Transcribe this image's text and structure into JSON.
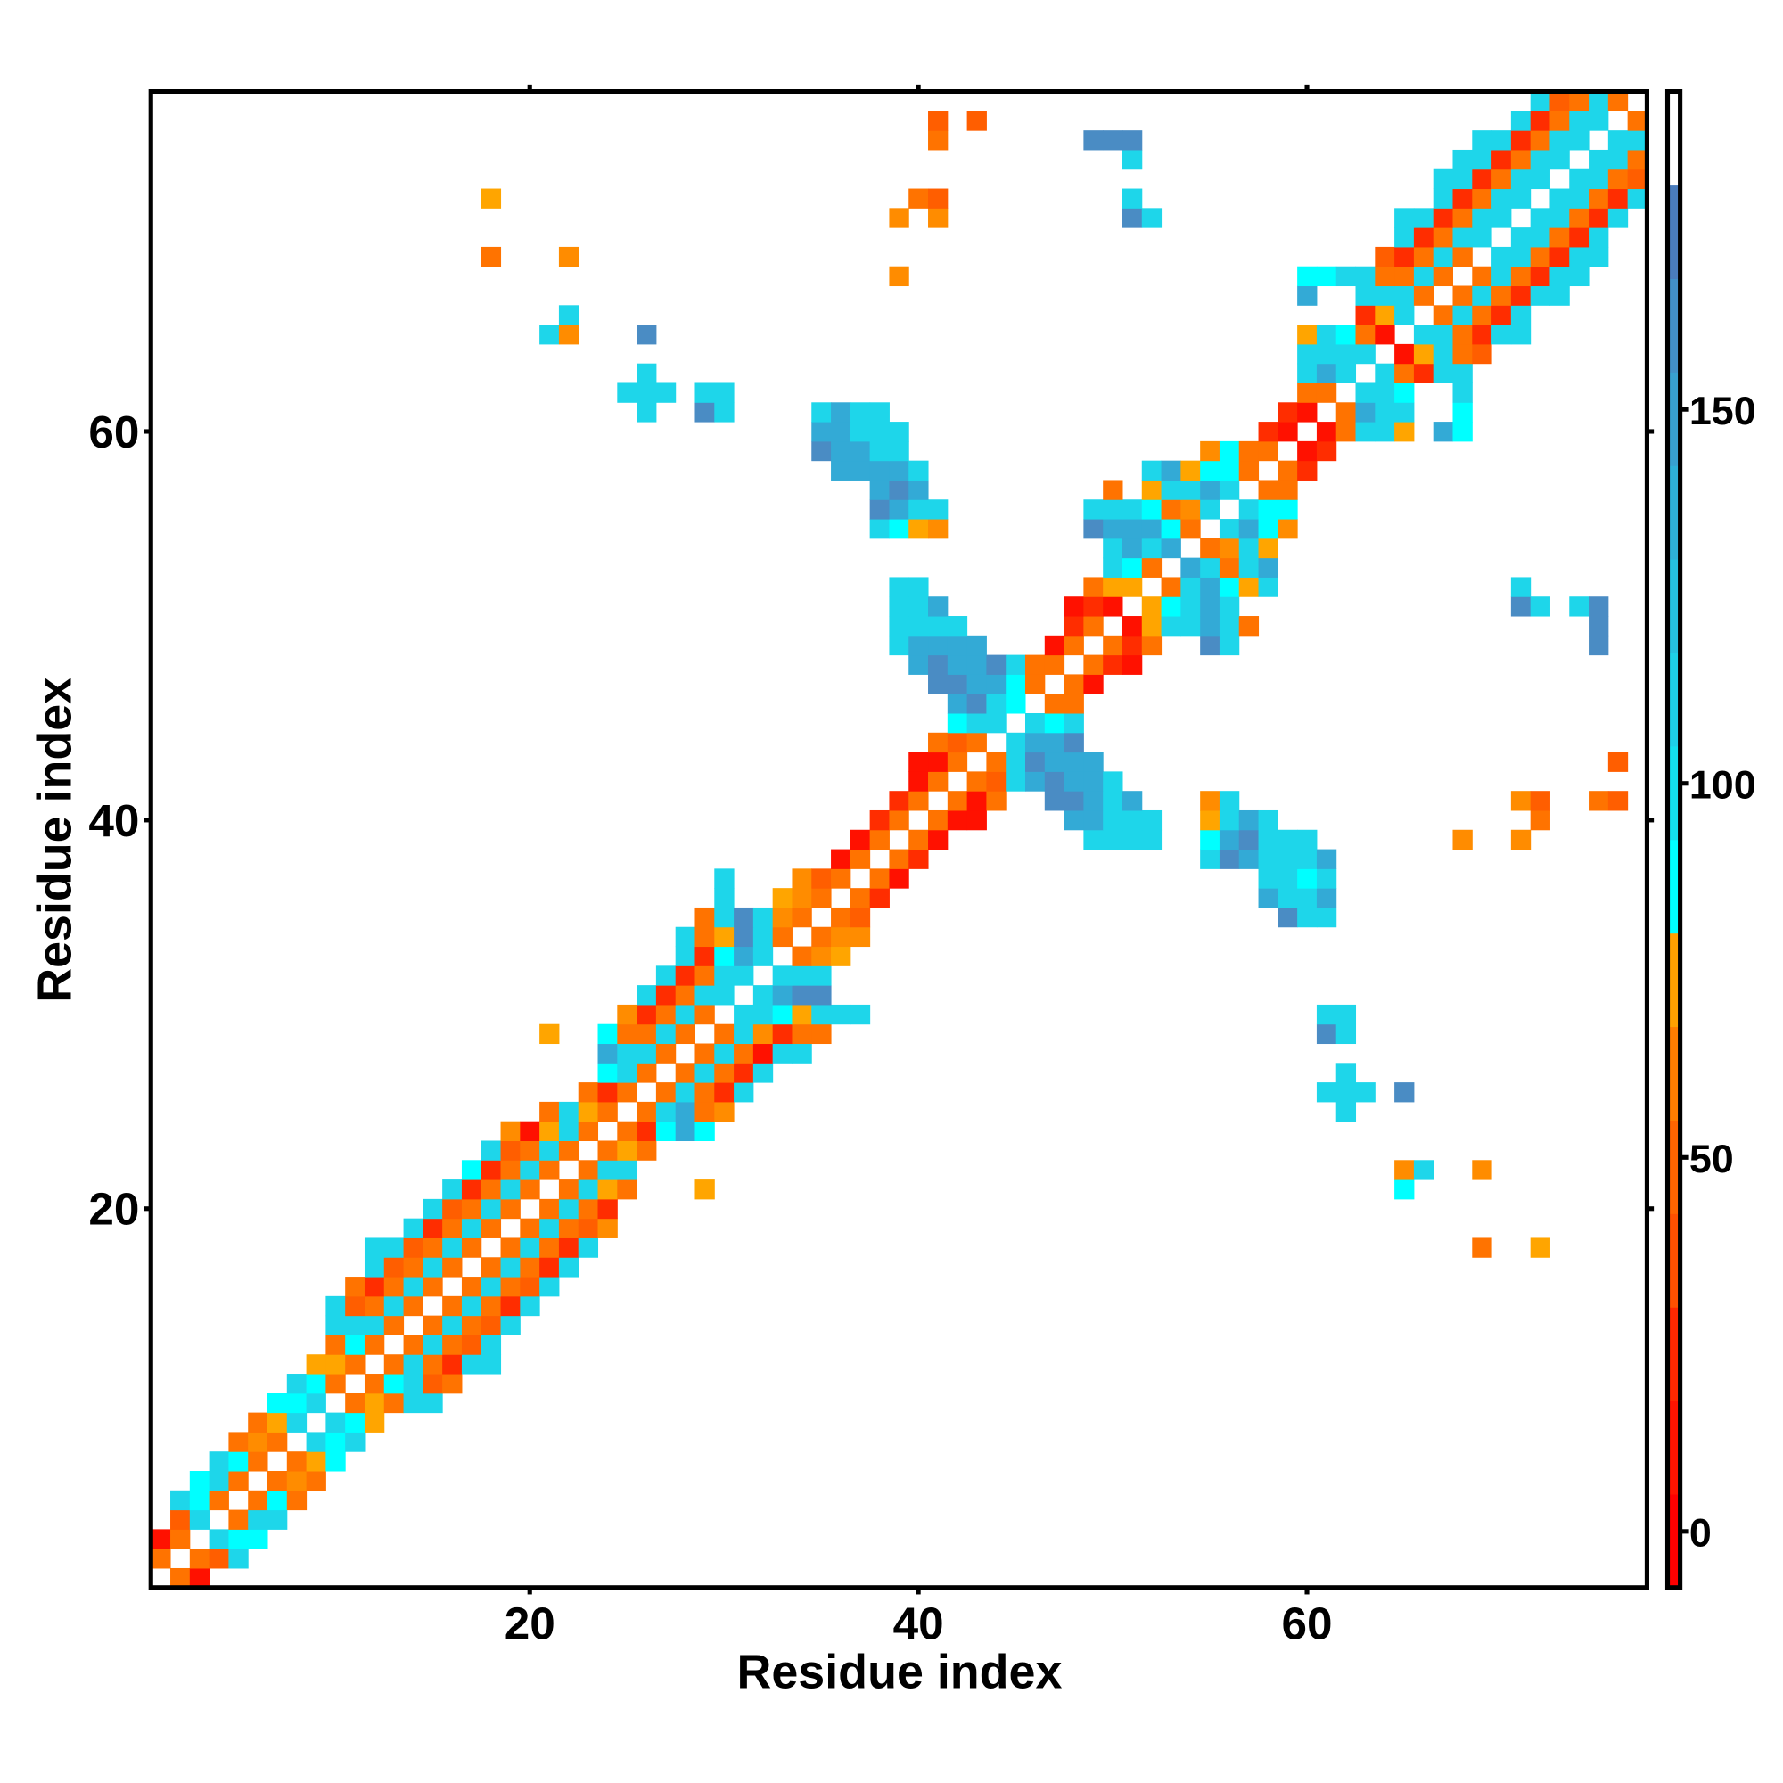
{
  "chart_data": {
    "type": "heatmap",
    "title": "",
    "xlabel": "Residue index",
    "ylabel": "Residue index",
    "xlim": [
      0.5,
      77.5
    ],
    "ylim": [
      0.5,
      77.5
    ],
    "xticks": [
      20,
      40,
      60
    ],
    "yticks": [
      20,
      40,
      60
    ],
    "grid": false,
    "legend": "colorbar-right",
    "n_residues": 77,
    "colorbar": {
      "range": [
        -7.5,
        192.5
      ],
      "ticks": [
        0,
        50,
        100,
        150
      ],
      "bin_width": 12.5,
      "bin_colors": [
        "#ff0000",
        "#ff1400",
        "#ff2800",
        "#ff5000",
        "#ff6400",
        "#ff7d00",
        "#ffa000",
        "#00ffff",
        "#14e0ee",
        "#1ed0e8",
        "#26c0e0",
        "#2eb0d8",
        "#38a0d0",
        "#4290c8",
        "#4a7cbc",
        "#ffffff"
      ]
    },
    "value_codes": {
      "R": {
        "value": 0,
        "color": "#ff1100"
      },
      "r": {
        "value": 20,
        "color": "#ff2d00"
      },
      "o": {
        "value": 40,
        "color": "#ff5e00"
      },
      "O": {
        "value": 50,
        "color": "#ff7300"
      },
      "a": {
        "value": 62,
        "color": "#ff8c00"
      },
      "A": {
        "value": 75,
        "color": "#ffa500"
      },
      "C": {
        "value": 87,
        "color": "#00ffff"
      },
      "c": {
        "value": 110,
        "color": "#1ed6ea"
      },
      "b": {
        "value": 140,
        "color": "#33aad6"
      },
      "B": {
        "value": 165,
        "color": "#4a8cc4"
      }
    },
    "rows_format": "row i (residue i on y axis) lists 'columnCode' tokens; column = residue on x axis",
    "rows": [
      "2O 3R",
      "1O 3O 4o 5c",
      "1R 2O 4c 5C 6C",
      "2o 3c 5O 6c 7c",
      "2c 3C 4O 6O 7C 8O",
      "3C 4c 5O 7O 8a 9O",
      "4c 5C 6O 8O 9A 10C",
      "5O 6a 7O 9c 10C 11c",
      "6O 7A 8c 10c 11C 12A",
      "7C 8C 9c 11O 12A 13O 14c 15c",
      "8c 9C 10O 12O 13C 14c 15o 16O",
      "9A 10A 11O 13O 14c 15O 16r 17c 18c",
      "10O 11C 12O 14O 15c 16O 17o 18c",
      "10c 11c 12c 13O 15O 16c 17O 18o 19c",
      "10c 11o 12O 13c 14O 16O 17c 18O 19r 20c",
      "11O 12r 13O 14c 15O 17O 18c 19O 20o 21c",
      "12c 13o 14O 15c 16O 18O 19c 20O 21r 22c",
      "12c 13c 14o 15O 16c 17O 19O 20c 21O 22r 23c 69O 72A",
      "14c 15r 16O 17c 18O 20O 21c 22O 23o 24a",
      "15c 16o 17O 18c 19O 21O 22c 23O 24r",
      "16c 17r 18O 19c 20O 22O 23c 24A 25O 29A 65C",
      "17C 18r 19O 20c 21O 23O 24c 25c 65a 66c 69a",
      "18c 19o 20O 21c 22O 24O 25A 26O",
      "19a 20R 21A 22c 23O 25O 26r 27C 28b 29C",
      "21O 22c 23A 24O 26O 27c 28b 29O 30a 62c",
      "23O 24r 25O 27O 28c 29O 30r 31c 61c 62c 63c 65B",
      "24C 25c 26O 28O 29c 30O 31r 32c 62c",
      "24b 25c 26c 27O 29O 30c 31O 32R 33c 34c",
      "21A 24C 25O 26O 27c 28O 30O 31c 32a 33r 34O 35O 61B 62c",
      "25a 26r 27O 28c 29O 31c 32c 33C 34A 35c 36c 37c 61c 62c",
      "26c 27r 28O 29c 30c 32c 33b 34B 35B",
      "27c 28r 29O 30c 31c 33c 34c 35c",
      "28c 29r 30C 31b 32c 34O 35a 36A",
      "28c 29O 30A 31B 32c 33O 35O 36a 37a",
      "29O 30c 31B 32c 33a 34O 36O 37o 59B 60c 61c",
      "30c 33A 34a 35O 37O 38r 58b 59c 60c 61b",
      "30c 34a 35o 36O 38O 39R 58c 59c 60C 61c",
      "36R 37O 39O 40r 55c 56B 57b 58c 59c 60c 61b",
      "37R 38O 40O 41R 49c 50c 51c 52c 55C 56b 57B 58c 59c 60c 68a 71a",
      "38r 39O 41O 42R 43R 48b 49b 50c 51c 52c 55A 56c 57b 58c 72O",
      "39r 40O 42O 43R 44O 47B 48B 49b 50c 51b 55a 56c 71a 72o 75O 76o",
      "40R 41O 43O 44o 45c 46b 47B 48b 49b 50c",
      "40R 41R 42O 44O 45c 46B 47b 48b 49b 76o",
      "41O 42o 43O 45c 46b 47b 48B",
      "42C 43c 44c 46c 47C 48c",
      "42b 43B 44c 45C 47O 48O",
      "41B 42B 43b 44b 45C 46O 48O 49R",
      "40b 41B 42b 43b 44B 45c 46O 47O 49O 50r 51R",
      "39c 40b 41b 42b 43b 47R 48O 50O 51r 52O 55B 56c 75B",
      "39c 40c 41c 42c 48r 49O 51R 52A 53c 54c 55b 56c 57O 75B",
      "39c 40c 41b 48R 49r 50R 52A 53C 54c 55b 56c 71B 72c 74c 75B",
      "39c 40c 49O 50A 51A 53O 54c 55b 56C 57A 58c 71c",
      "50c 51C 52O 54b 55c 56O 57c 58b",
      "50c 51b 52c 53b 55O 56a 57c 58A",
      "38c 39C 40A 41a 49B 50b 51b 52b 53C 54O 56c 57b 58C 59a",
      "38B 39b 40c 41c 49c 50c 51c 52C 53O 54a 55c 57c 58C 59C",
      "38b 39B 40b 50O 52A 53c 54c 55b 56c 58O 59O",
      "36b 37b 38b 39b 40c 52c 53b 54A 55C 56C 57O 59O 60r",
      "35B 36b 37b 38c 39c 55a 56C 57O 58O 60R 61r",
      "35b 36b 37c 38c 39c 58r 59R 61R 62O 63c 64c 65A 67b 68C",
      "26c 29B 30c 35c 36b 37c 38c 59r 60R 62O 63b 64c 65c 68C",
      "25c 26c 27c 29c 30c 60O 61O 63c 64c 65C 68c",
      "26c 60c 61b 62c 64c 65O 66r 67c 68c",
      "60c 61c 62c 63c 65R 66A 67c 68O 69o",
      "21c 22a 26B 60A 61c 62C 63O 64R 66c 67c 68O 69r 70c 71c",
      "22c 63r 64A 65c 67O 68c 69O 70r 71c",
      "60b 63c 64c 65c 66O 68O 69c 70O 71r 72c 73c",
      "39a 60C 61C 62c 63c 64O 65O 66c 67O 69O 70c 71O 72r 73c 74c",
      "18O 22a 64o 65r 66O 67c 68O 70c 71c 72O 73r 74c 75c",
      "65c 66r 67O 68c 69c 71c 72c 73O 74r 75c",
      "39a 41a 51B 52c 65c 66c 67r 68O 69c 70c 72c 73c 74O 75r 76c",
      "18A 40O 41o 51c 67c 68r 69O 70c 71c 73c 74c 75O 76r 77c",
      "67c 68c 69r 70O 71c 72c 74c 75c 76O 77o",
      "51c 68c 69c 70r 71O 72c 73c 75c 76c 77O",
      "41O 49B 50B 51B 69c 70c 71r 72O 73c 74c 76c 77c",
      "41o 43o 71c 72r 73O 74c 75c 77O",
      "72c 73o 74O 75c 76O"
    ],
    "tick_labels": {
      "x": [
        "20",
        "40",
        "60"
      ],
      "y": [
        "20",
        "40",
        "60"
      ],
      "colorbar": [
        "0",
        "50",
        "100",
        "150"
      ]
    }
  }
}
